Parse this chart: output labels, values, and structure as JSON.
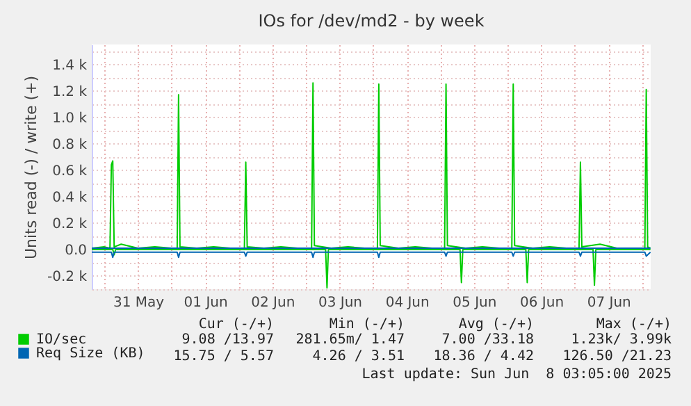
{
  "chart_data": {
    "type": "line",
    "title": "IOs for /dev/md2 - by week",
    "ylabel": "Units read (-) / write (+)",
    "xlim": [
      "2025-05-30T19:30",
      "2025-06-08T03:05"
    ],
    "xticks": [
      {
        "value": "2025-05-31T00:00",
        "label": null
      },
      {
        "value": "2025-05-31T12:00",
        "label": "31 May"
      },
      {
        "value": "2025-06-01T00:00",
        "label": null
      },
      {
        "value": "2025-06-01T12:00",
        "label": "01 Jun"
      },
      {
        "value": "2025-06-02T00:00",
        "label": null
      },
      {
        "value": "2025-06-02T12:00",
        "label": "02 Jun"
      },
      {
        "value": "2025-06-03T00:00",
        "label": null
      },
      {
        "value": "2025-06-03T12:00",
        "label": "03 Jun"
      },
      {
        "value": "2025-06-04T00:00",
        "label": null
      },
      {
        "value": "2025-06-04T12:00",
        "label": "04 Jun"
      },
      {
        "value": "2025-06-05T00:00",
        "label": null
      },
      {
        "value": "2025-06-05T12:00",
        "label": "05 Jun"
      },
      {
        "value": "2025-06-06T00:00",
        "label": null
      },
      {
        "value": "2025-06-06T12:00",
        "label": "06 Jun"
      },
      {
        "value": "2025-06-07T00:00",
        "label": null
      },
      {
        "value": "2025-06-07T12:00",
        "label": "07 Jun"
      },
      {
        "value": "2025-06-08T00:00",
        "label": null
      }
    ],
    "ylim": [
      -300,
      1550
    ],
    "yticks": [
      {
        "value": -300,
        "label": null
      },
      {
        "value": -200,
        "label": "-0.2 k"
      },
      {
        "value": -100,
        "label": null
      },
      {
        "value": 0,
        "label": "0.0"
      },
      {
        "value": 100,
        "label": null
      },
      {
        "value": 200,
        "label": "0.2 k"
      },
      {
        "value": 300,
        "label": null
      },
      {
        "value": 400,
        "label": "0.4 k"
      },
      {
        "value": 500,
        "label": null
      },
      {
        "value": 600,
        "label": "0.6 k"
      },
      {
        "value": 700,
        "label": null
      },
      {
        "value": 800,
        "label": "0.8 k"
      },
      {
        "value": 900,
        "label": null
      },
      {
        "value": 1000,
        "label": "1.0 k"
      },
      {
        "value": 1100,
        "label": null
      },
      {
        "value": 1200,
        "label": "1.2 k"
      },
      {
        "value": 1300,
        "label": null
      },
      {
        "value": 1400,
        "label": "1.4 k"
      },
      {
        "value": 1500,
        "label": null
      }
    ],
    "grid": true,
    "legend": "bottom left",
    "line_style": "solid",
    "series": [
      {
        "name": "IO/sec",
        "color": "#00cc00",
        "x": [
          "2025-05-30T19:30",
          "2025-05-31T00:00",
          "2025-05-31T02:00",
          "2025-05-31T02:30",
          "2025-05-31T03:00",
          "2025-05-31T03:30",
          "2025-05-31T06:00",
          "2025-05-31T12:00",
          "2025-05-31T18:00",
          "2025-06-01T00:00",
          "2025-06-01T02:00",
          "2025-06-01T02:30",
          "2025-06-01T03:00",
          "2025-06-01T09:00",
          "2025-06-01T15:00",
          "2025-06-01T21:00",
          "2025-06-02T02:00",
          "2025-06-02T02:30",
          "2025-06-02T03:00",
          "2025-06-02T09:00",
          "2025-06-02T15:00",
          "2025-06-02T21:00",
          "2025-06-03T02:00",
          "2025-06-03T02:30",
          "2025-06-03T03:00",
          "2025-06-03T09:00",
          "2025-06-03T15:00",
          "2025-06-03T21:00",
          "2025-06-04T01:30",
          "2025-06-04T02:00",
          "2025-06-04T02:30",
          "2025-06-04T09:00",
          "2025-06-04T15:00",
          "2025-06-04T21:00",
          "2025-06-05T01:30",
          "2025-06-05T02:00",
          "2025-06-05T02:30",
          "2025-06-05T09:00",
          "2025-06-05T15:00",
          "2025-06-05T21:00",
          "2025-06-06T01:30",
          "2025-06-06T02:00",
          "2025-06-06T02:30",
          "2025-06-06T09:00",
          "2025-06-06T15:00",
          "2025-06-06T21:00",
          "2025-06-07T01:30",
          "2025-06-07T02:00",
          "2025-06-07T02:30",
          "2025-06-07T09:00",
          "2025-06-07T15:00",
          "2025-06-07T21:00",
          "2025-06-08T01:00",
          "2025-06-08T01:30",
          "2025-06-08T02:00",
          "2025-06-08T03:00"
        ],
        "values": [
          10,
          20,
          10,
          640,
          670,
          20,
          40,
          10,
          20,
          10,
          10,
          1170,
          20,
          10,
          20,
          10,
          10,
          660,
          20,
          10,
          20,
          10,
          10,
          1260,
          30,
          10,
          20,
          10,
          10,
          1250,
          30,
          10,
          20,
          10,
          10,
          1250,
          30,
          10,
          20,
          10,
          10,
          1250,
          30,
          10,
          20,
          10,
          10,
          660,
          20,
          40,
          10,
          10,
          10,
          1210,
          20,
          10
        ]
      },
      {
        "color": "#00cc00",
        "x": [
          "2025-05-30T19:30",
          "2025-05-31T03:00",
          "2025-05-31T03:30",
          "2025-05-31T04:00",
          "2025-06-03T07:00",
          "2025-06-03T07:30",
          "2025-06-03T08:00",
          "2025-06-05T07:00",
          "2025-06-05T07:30",
          "2025-06-05T08:00",
          "2025-06-06T06:30",
          "2025-06-06T07:00",
          "2025-06-06T07:30",
          "2025-06-07T06:30",
          "2025-06-07T07:00",
          "2025-06-07T07:30",
          "2025-06-08T03:00"
        ],
        "values": [
          0,
          0,
          -40,
          0,
          0,
          -290,
          0,
          0,
          -250,
          0,
          0,
          -250,
          0,
          0,
          -270,
          0,
          0
        ]
      },
      {
        "name": "Req Size (KB)",
        "color": "#0066b3",
        "x": [
          "2025-05-30T19:30",
          "2025-06-08T03:00"
        ],
        "values": [
          10,
          10
        ]
      },
      {
        "color": "#0066b3",
        "x": [
          "2025-05-30T19:30",
          "2025-05-31T02:30",
          "2025-05-31T03:00",
          "2025-05-31T03:30",
          "2025-05-31T12:00",
          "2025-06-01T02:00",
          "2025-06-01T02:30",
          "2025-06-01T03:00",
          "2025-06-01T14:00",
          "2025-06-02T02:00",
          "2025-06-02T02:30",
          "2025-06-02T03:00",
          "2025-06-02T14:00",
          "2025-06-03T02:00",
          "2025-06-03T02:30",
          "2025-06-03T03:00",
          "2025-06-03T14:00",
          "2025-06-04T01:30",
          "2025-06-04T02:00",
          "2025-06-04T02:30",
          "2025-06-04T14:00",
          "2025-06-05T01:30",
          "2025-06-05T02:00",
          "2025-06-05T02:30",
          "2025-06-05T14:00",
          "2025-06-06T01:30",
          "2025-06-06T02:00",
          "2025-06-06T02:30",
          "2025-06-06T14:00",
          "2025-06-07T01:30",
          "2025-06-07T02:00",
          "2025-06-07T02:30",
          "2025-06-07T14:00",
          "2025-06-08T01:00",
          "2025-06-08T01:30",
          "2025-06-08T03:00"
        ],
        "values": [
          -20,
          -20,
          -60,
          -20,
          -20,
          -20,
          -60,
          -20,
          -20,
          -20,
          -50,
          -20,
          -20,
          -20,
          -60,
          -20,
          -20,
          -20,
          -60,
          -20,
          -20,
          -20,
          -50,
          -20,
          -20,
          -20,
          -50,
          -20,
          -20,
          -20,
          -50,
          -20,
          -20,
          -20,
          -50,
          -20
        ]
      }
    ],
    "annotations": [
      "Cur (-/+)",
      "Min (-/+)",
      "Avg (-/+)",
      "Max (-/+)",
      "9.08 /13.97",
      "281.65m/ 1.47",
      "7.00 /33.18",
      "1.23k/ 3.99k",
      "15.75 / 5.57",
      "4.26 / 3.51",
      "18.36 / 4.42",
      "126.50 /21.23",
      "Last update: Sun Jun  8 03:05:00 2025"
    ]
  }
}
